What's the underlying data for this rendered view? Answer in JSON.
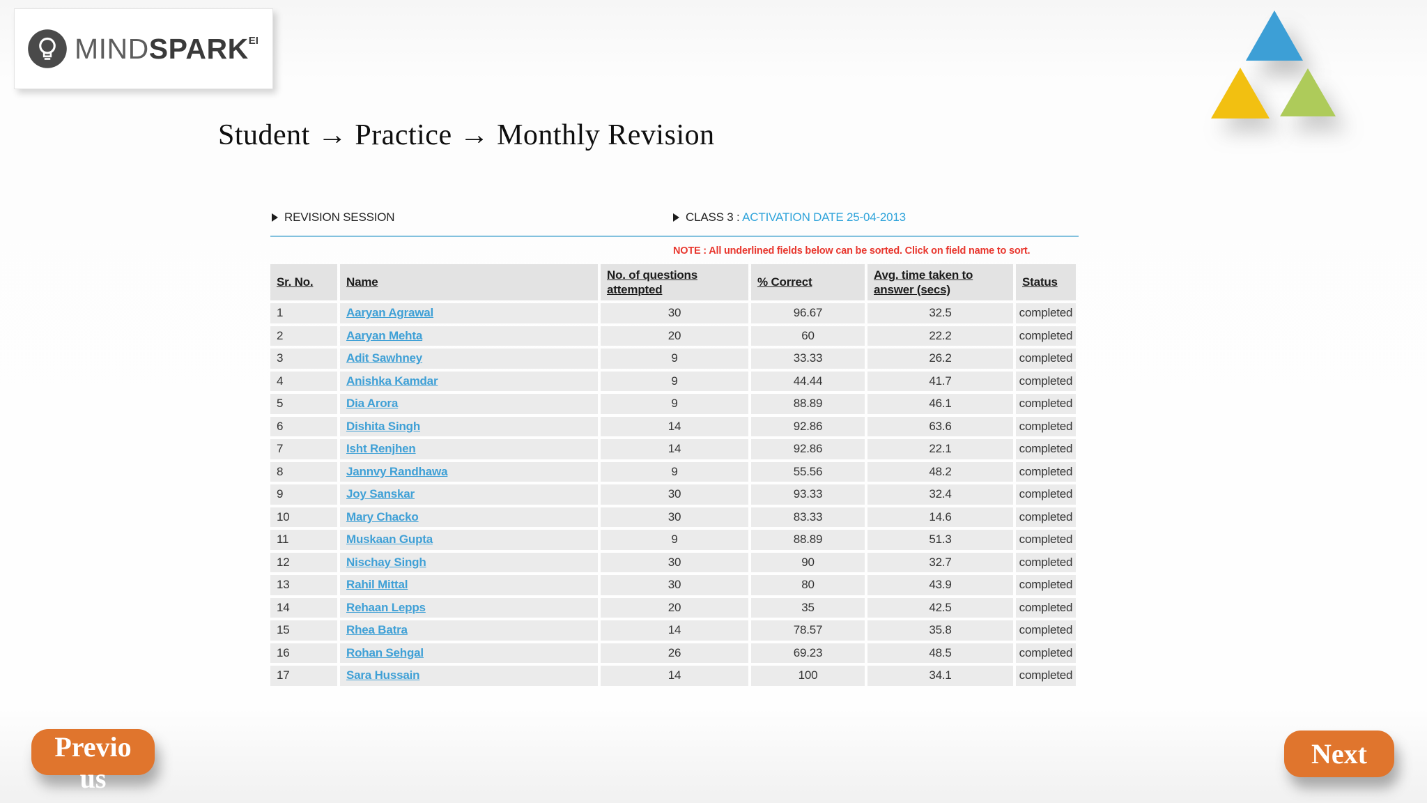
{
  "logo": {
    "brand_light": "MIND",
    "brand_bold": "SPARK",
    "superscript": "EI"
  },
  "title": {
    "text": "Student → Practice → Monthly Revision"
  },
  "panel": {
    "session_label": "REVISION SESSION",
    "class_label": "CLASS 3",
    "separator": " : ",
    "activation_label": "ACTIVATION DATE 25-04-2013",
    "note": "NOTE : All underlined fields below can be sorted. Click on field name to sort."
  },
  "table": {
    "columns": [
      "Sr. No.",
      "Name",
      "No. of questions attempted",
      "% Correct",
      "Avg. time taken to answer (secs)",
      "Status"
    ],
    "rows": [
      [
        "1",
        "Aaryan Agrawal",
        "30",
        "96.67",
        "32.5",
        "completed"
      ],
      [
        "2",
        "Aaryan Mehta",
        "20",
        "60",
        "22.2",
        "completed"
      ],
      [
        "3",
        "Adit Sawhney",
        "9",
        "33.33",
        "26.2",
        "completed"
      ],
      [
        "4",
        "Anishka Kamdar",
        "9",
        "44.44",
        "41.7",
        "completed"
      ],
      [
        "5",
        "Dia Arora",
        "9",
        "88.89",
        "46.1",
        "completed"
      ],
      [
        "6",
        "Dishita Singh",
        "14",
        "92.86",
        "63.6",
        "completed"
      ],
      [
        "7",
        "Isht Renjhen",
        "14",
        "92.86",
        "22.1",
        "completed"
      ],
      [
        "8",
        "Jannvy Randhawa",
        "9",
        "55.56",
        "48.2",
        "completed"
      ],
      [
        "9",
        "Joy Sanskar",
        "30",
        "93.33",
        "32.4",
        "completed"
      ],
      [
        "10",
        "Mary Chacko",
        "30",
        "83.33",
        "14.6",
        "completed"
      ],
      [
        "11",
        "Muskaan Gupta",
        "9",
        "88.89",
        "51.3",
        "completed"
      ],
      [
        "12",
        "Nischay Singh",
        "30",
        "90",
        "32.7",
        "completed"
      ],
      [
        "13",
        "Rahil Mittal",
        "30",
        "80",
        "43.9",
        "completed"
      ],
      [
        "14",
        "Rehaan Lepps",
        "20",
        "35",
        "42.5",
        "completed"
      ],
      [
        "15",
        "Rhea Batra",
        "14",
        "78.57",
        "35.8",
        "completed"
      ],
      [
        "16",
        "Rohan Sehgal",
        "26",
        "69.23",
        "48.5",
        "completed"
      ]
    ],
    "clipped_row": [
      "17",
      "Sara Hussain",
      "14",
      "100",
      "34.1",
      "completed"
    ]
  },
  "nav": {
    "previous_label": "Previous",
    "next_label": "Next"
  },
  "colors": {
    "link_blue": "#3fa0d6",
    "activation_blue": "#2ea3da",
    "rule_blue": "#82c1de",
    "note_red": "#e8362d",
    "button_orange": "#e0752d",
    "header_gray": "#e3e3e3",
    "row_gray": "#ebebeb",
    "triangle_blue": "#3d9fd6",
    "triangle_yellow": "#f2c011",
    "triangle_green": "#aecb5a"
  }
}
